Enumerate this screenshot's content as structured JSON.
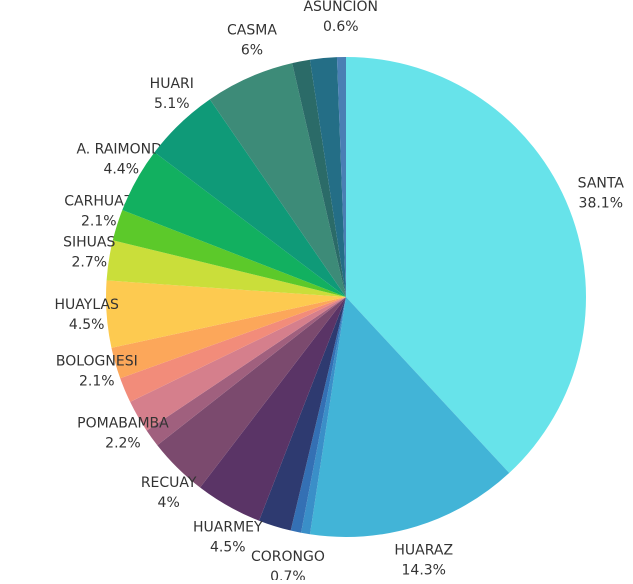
{
  "chart_data": {
    "type": "pie",
    "categories": [
      "SANTA",
      "HUARAZ",
      null,
      "CORONGO",
      null,
      "HUARMEY",
      "RECUAY",
      null,
      "POMABAMBA",
      null,
      "BOLOGNESI",
      "HUAYLAS",
      "SIHUAS",
      "CARHUAZ",
      "A. RAIMONDI",
      "HUARI",
      "CASMA",
      null,
      null,
      "ASUNCIÓN"
    ],
    "values": [
      38.1,
      14.3,
      0.6,
      0.7,
      2.2,
      4.5,
      4,
      1.2,
      2.2,
      1.7,
      2.1,
      4.5,
      2.7,
      2.1,
      4.4,
      5.1,
      6,
      1.2,
      1.8,
      0.6
    ],
    "value_labels": [
      "38.1%",
      "14.3%",
      null,
      "0.7%",
      null,
      "4.5%",
      "4%",
      null,
      "2.2%",
      null,
      "2.1%",
      "4.5%",
      "2.7%",
      "2.1%",
      "4.4%",
      "5.1%",
      "6%",
      null,
      null,
      "0.6%"
    ],
    "colors": [
      "#67e3ea",
      "#42b4d7",
      "#3a8fc8",
      "#3470b4",
      "#2e3a70",
      "#5a3466",
      "#7b4a6e",
      "#a0607e",
      "#d57f8c",
      "#f28c7a",
      "#fca75a",
      "#fdca50",
      "#cade3a",
      "#5cc92a",
      "#12b060",
      "#0f9a78",
      "#3d8b78",
      "#2b6b68",
      "#246e86",
      "#4a7fb4"
    ]
  }
}
